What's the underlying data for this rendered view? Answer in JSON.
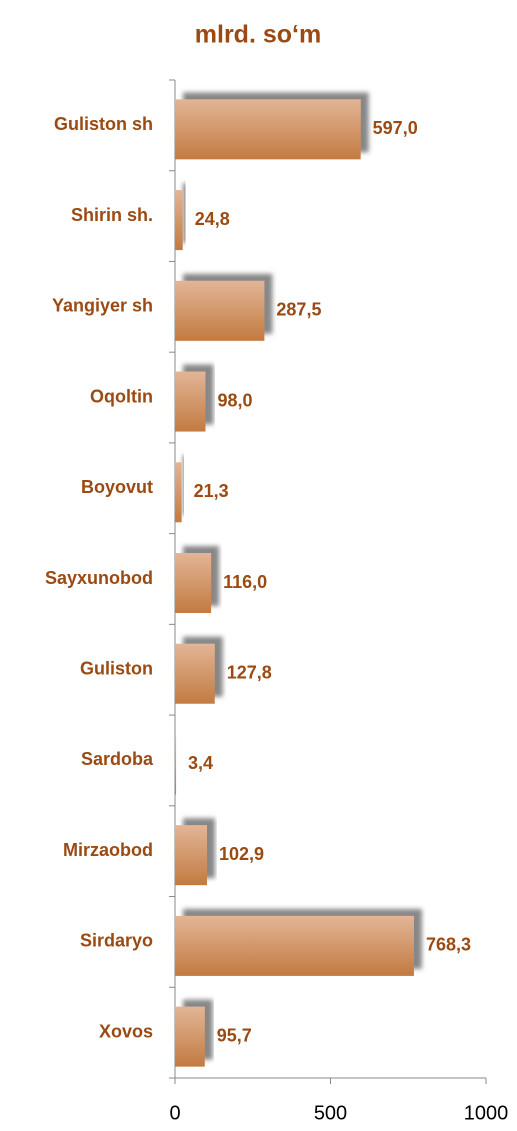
{
  "chart_data": {
    "type": "bar",
    "orientation": "horizontal",
    "title": "mlrd. so‘m",
    "categories": [
      "Guliston sh",
      "Shirin sh.",
      "Yangiyer sh",
      "Oqoltin",
      "Boyovut",
      "Sayxunobod",
      "Guliston",
      "Sardoba",
      "Mirzaobod",
      "Sirdaryo",
      "Xovos"
    ],
    "values": [
      597.0,
      24.8,
      287.5,
      98.0,
      21.3,
      116.0,
      127.8,
      3.4,
      102.9,
      768.3,
      95.7
    ],
    "value_labels": [
      "597,0",
      "24,8",
      "287,5",
      "98,0",
      "21,3",
      "116,0",
      "127,8",
      "3,4",
      "102,9",
      "768,3",
      "95,7"
    ],
    "color": "#c98550",
    "xlim": [
      0,
      1000
    ],
    "xticks": [
      0,
      500,
      1000
    ],
    "grid": false
  }
}
